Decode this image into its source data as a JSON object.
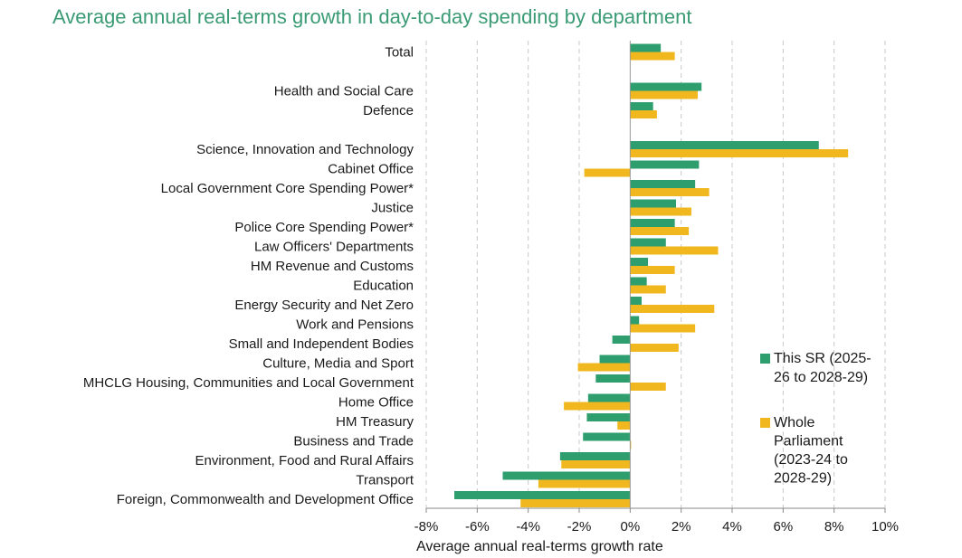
{
  "chart_data": {
    "type": "bar",
    "orientation": "horizontal",
    "title": "Average annual real-terms growth in day-to-day spending by department",
    "xlabel": "Average annual real-terms growth rate",
    "ylabel": "",
    "xlim": [
      -8,
      10
    ],
    "xticks": [
      "-8%",
      "-6%",
      "-4%",
      "-2%",
      "0%",
      "2%",
      "4%",
      "6%",
      "8%",
      "10%"
    ],
    "grid": true,
    "legend_position": "right",
    "colors": {
      "this_sr": "#2e9e6e",
      "whole_parliament": "#f0b81e"
    },
    "categories": [
      "Total",
      "",
      "Health and Social Care",
      "Defence",
      "",
      "Science, Innovation and Technology",
      "Cabinet Office",
      "Local Government Core Spending Power*",
      "Justice",
      "Police Core Spending Power*",
      "Law Officers' Departments",
      "HM Revenue and Customs",
      "Education",
      "Energy Security and Net Zero",
      "Work and Pensions",
      "Small and Independent Bodies",
      "Culture, Media and Sport",
      "MHCLG Housing, Communities and Local Government",
      "Home Office",
      "HM Treasury",
      "Business and Trade",
      "Environment, Food and Rural Affairs",
      "Transport",
      "Foreign, Commonwealth and Development Office"
    ],
    "series": [
      {
        "name": "This SR (2025-26 to 2028-29)",
        "legend_lines": [
          "This SR (2025-",
          "26 to 2028-29)"
        ],
        "values": [
          1.2,
          null,
          2.8,
          0.9,
          null,
          7.4,
          2.7,
          2.55,
          1.8,
          1.75,
          1.4,
          0.7,
          0.65,
          0.45,
          0.35,
          -0.7,
          -1.2,
          -1.35,
          -1.65,
          -1.7,
          -1.85,
          -2.75,
          -5.0,
          -6.9
        ]
      },
      {
        "name": "Whole Parliament (2023-24 to 2028-29)",
        "legend_lines": [
          "Whole",
          "Parliament",
          "(2023-24 to",
          "2028-29)"
        ],
        "values": [
          1.75,
          null,
          2.65,
          1.05,
          null,
          8.55,
          -1.8,
          3.1,
          2.4,
          2.3,
          3.45,
          1.75,
          1.4,
          3.3,
          2.55,
          1.9,
          -2.05,
          1.4,
          -2.6,
          -0.5,
          0.0,
          -2.7,
          -3.6,
          -4.3
        ]
      }
    ]
  }
}
